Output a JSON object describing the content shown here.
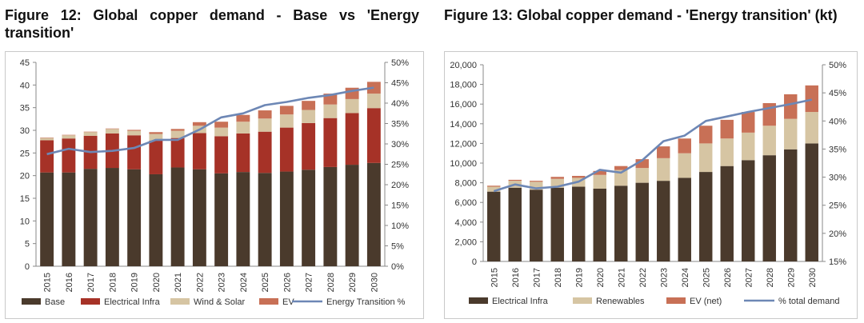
{
  "figures": {
    "fig12_title": "Figure 12: Global copper demand - Base vs 'Energy transition'",
    "fig13_title": "Figure 13: Global copper demand - 'Energy transition' (kt)"
  },
  "colors": {
    "base": "#4a3a2c",
    "electrical": "#a63227",
    "wind_solar": "#d6c5a3",
    "ev": "#c87056",
    "line": "#6d87b5",
    "renewables": "#d6c5a3",
    "ev_net": "#c87056"
  },
  "chart_data": [
    {
      "type": "bar",
      "stacked": true,
      "categories": [
        "2015",
        "2016",
        "2017",
        "2018",
        "2019",
        "2020",
        "2021",
        "2022",
        "2023",
        "2024",
        "2025",
        "2026",
        "2027",
        "2028",
        "2029",
        "2030"
      ],
      "series": [
        {
          "name": "Base",
          "values": [
            20.7,
            20.7,
            21.5,
            21.7,
            21.4,
            20.3,
            21.8,
            21.4,
            20.5,
            20.8,
            20.6,
            20.9,
            21.3,
            21.9,
            22.4,
            22.8
          ]
        },
        {
          "name": "Electrical Infra",
          "values": [
            7.1,
            7.5,
            7.3,
            7.6,
            7.5,
            7.4,
            6.5,
            8.0,
            8.2,
            8.5,
            9.1,
            9.7,
            10.3,
            10.8,
            11.4,
            12.1
          ]
        },
        {
          "name": "Wind & Solar",
          "values": [
            0.5,
            0.7,
            0.8,
            1.0,
            1.0,
            1.5,
            1.6,
            1.6,
            1.9,
            2.6,
            2.9,
            2.9,
            2.9,
            3.0,
            3.1,
            3.2
          ]
        },
        {
          "name": "EV",
          "values": [
            0.1,
            0.1,
            0.1,
            0.1,
            0.2,
            0.4,
            0.4,
            0.8,
            1.3,
            1.5,
            1.8,
            1.9,
            2.0,
            2.4,
            2.5,
            2.6
          ]
        }
      ],
      "line": {
        "name": "Energy Transition %",
        "axis": "right",
        "values": [
          27.5,
          28.8,
          28.0,
          28.3,
          29.0,
          31.0,
          31.0,
          33.5,
          36.5,
          37.5,
          39.5,
          40.3,
          41.3,
          42.0,
          43.0,
          43.8
        ]
      },
      "ylim": [
        0,
        45
      ],
      "yticks": [
        "0",
        "5",
        "10",
        "15",
        "20",
        "25",
        "30",
        "35",
        "40",
        "45"
      ],
      "y2lim": [
        0,
        50
      ],
      "y2ticks": [
        "0%",
        "5%",
        "10%",
        "15%",
        "20%",
        "25%",
        "30%",
        "35%",
        "40%",
        "45%",
        "50%"
      ],
      "legend_position": "bottom",
      "legend": [
        "Base",
        "Electrical Infra",
        "Wind & Solar",
        "EV",
        "Energy Transition %"
      ]
    },
    {
      "type": "bar",
      "stacked": true,
      "categories": [
        "2015",
        "2016",
        "2017",
        "2018",
        "2019",
        "2020",
        "2021",
        "2022",
        "2023",
        "2024",
        "2025",
        "2026",
        "2027",
        "2028",
        "2029",
        "2030"
      ],
      "series": [
        {
          "name": "Electrical Infra",
          "values": [
            7100,
            7500,
            7300,
            7500,
            7600,
            7400,
            7700,
            8000,
            8200,
            8500,
            9100,
            9700,
            10300,
            10800,
            11400,
            12000
          ]
        },
        {
          "name": "Renewables",
          "values": [
            500,
            700,
            800,
            900,
            900,
            1400,
            1600,
            1500,
            2300,
            2500,
            2900,
            2800,
            2800,
            3000,
            3100,
            3200
          ]
        },
        {
          "name": "EV (net)",
          "values": [
            100,
            100,
            100,
            200,
            200,
            400,
            400,
            900,
            1200,
            1500,
            1800,
            1900,
            2100,
            2300,
            2500,
            2700
          ]
        }
      ],
      "line": {
        "name": "% total demand",
        "axis": "right",
        "values": [
          27.5,
          28.7,
          28.0,
          28.3,
          29.2,
          31.3,
          30.8,
          33.0,
          36.4,
          37.4,
          40.0,
          40.8,
          41.6,
          42.3,
          43.0,
          43.8
        ]
      },
      "ylim": [
        0,
        20000
      ],
      "yticks": [
        "0",
        "2,000",
        "4,000",
        "6,000",
        "8,000",
        "10,000",
        "12,000",
        "14,000",
        "16,000",
        "18,000",
        "20,000"
      ],
      "y2lim": [
        15,
        50
      ],
      "y2ticks": [
        "15%",
        "20%",
        "25%",
        "30%",
        "35%",
        "40%",
        "45%",
        "50%"
      ],
      "legend_position": "bottom",
      "legend": [
        "Electrical Infra",
        "Renewables",
        "EV (net)",
        "% total demand"
      ]
    }
  ]
}
